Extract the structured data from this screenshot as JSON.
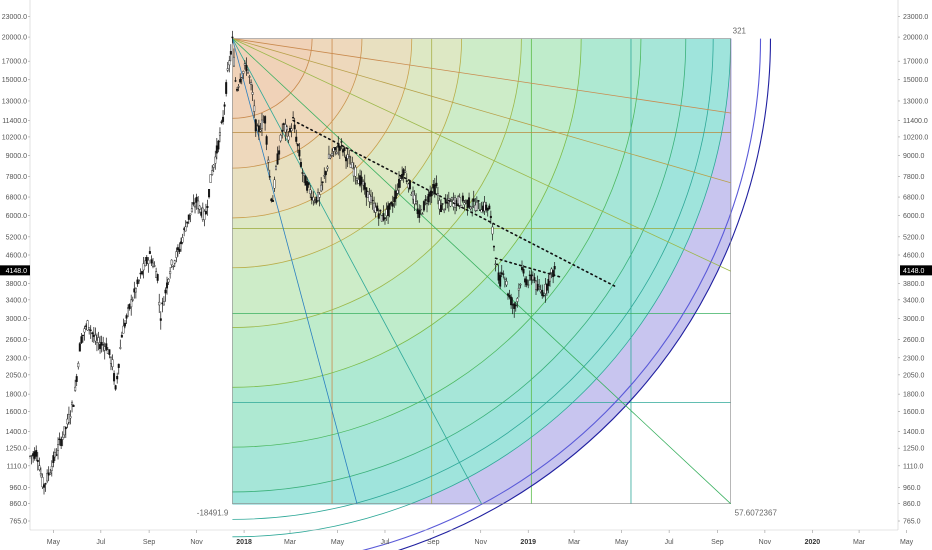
{
  "chart_data": {
    "type": "candlestick",
    "y_scale": "log",
    "ylim": [
      720,
      25000
    ],
    "x_start": "2017-04-01",
    "x_end": "2020-04-20",
    "y_ticks": [
      765.0,
      860.0,
      960.0,
      1110.0,
      1250.0,
      1400.0,
      1600.0,
      1800.0,
      2050.0,
      2300.0,
      2600.0,
      3000.0,
      3400.0,
      3800.0,
      4148.0,
      4600.0,
      5200.0,
      6000.0,
      6800.0,
      7800.0,
      9000.0,
      10200.0,
      11400.0,
      13000.0,
      15000.0,
      17000.0,
      20000.0,
      23000.0
    ],
    "y_tick_labels": [
      "765.0",
      "860.0",
      "960.0",
      "1110.0",
      "1250.0",
      "1400.0",
      "1600.0",
      "1800.0",
      "2050.0",
      "2300.0",
      "2600.0",
      "3000.0",
      "3400.0",
      "3800.0",
      "4148.0",
      "4600.0",
      "5200.0",
      "6000.0",
      "6800.0",
      "7800.0",
      "9000.0",
      "10200.0",
      "11400.0",
      "13000.0",
      "15000.0",
      "17000.0",
      "20000.0",
      "23000.0"
    ],
    "x_ticks": [
      {
        "date": "2017-05-01",
        "label": "May",
        "bold": false
      },
      {
        "date": "2017-07-01",
        "label": "Jul",
        "bold": false
      },
      {
        "date": "2017-09-01",
        "label": "Sep",
        "bold": false
      },
      {
        "date": "2017-11-01",
        "label": "Nov",
        "bold": false
      },
      {
        "date": "2018-01-01",
        "label": "2018",
        "bold": true
      },
      {
        "date": "2018-03-01",
        "label": "Mar",
        "bold": false
      },
      {
        "date": "2018-05-01",
        "label": "May",
        "bold": false
      },
      {
        "date": "2018-07-01",
        "label": "Jul",
        "bold": false
      },
      {
        "date": "2018-09-01",
        "label": "Sep",
        "bold": false
      },
      {
        "date": "2018-11-01",
        "label": "Nov",
        "bold": false
      },
      {
        "date": "2019-01-01",
        "label": "2019",
        "bold": true
      },
      {
        "date": "2019-03-01",
        "label": "Mar",
        "bold": false
      },
      {
        "date": "2019-05-01",
        "label": "May",
        "bold": false
      },
      {
        "date": "2019-07-01",
        "label": "Jul",
        "bold": false
      },
      {
        "date": "2019-09-01",
        "label": "Sep",
        "bold": false
      },
      {
        "date": "2019-11-01",
        "label": "Nov",
        "bold": false
      },
      {
        "date": "2020-01-01",
        "label": "2020",
        "bold": true
      },
      {
        "date": "2020-03-01",
        "label": "Mar",
        "bold": false
      },
      {
        "date": "2020-05-01",
        "label": "May",
        "bold": false
      }
    ],
    "current_price": {
      "value": 4148.0,
      "label": "4148.0"
    },
    "price_path": [
      {
        "date": "2017-04-01",
        "price": 1180
      },
      {
        "date": "2017-04-10",
        "price": 1220
      },
      {
        "date": "2017-04-18",
        "price": 960
      },
      {
        "date": "2017-04-25",
        "price": 1050
      },
      {
        "date": "2017-05-05",
        "price": 1220
      },
      {
        "date": "2017-05-18",
        "price": 1450
      },
      {
        "date": "2017-05-28",
        "price": 1750
      },
      {
        "date": "2017-06-05",
        "price": 2600
      },
      {
        "date": "2017-06-15",
        "price": 2900
      },
      {
        "date": "2017-06-25",
        "price": 2550
      },
      {
        "date": "2017-07-08",
        "price": 2500
      },
      {
        "date": "2017-07-16",
        "price": 2200
      },
      {
        "date": "2017-07-20",
        "price": 1850
      },
      {
        "date": "2017-07-28",
        "price": 2700
      },
      {
        "date": "2017-08-10",
        "price": 3400
      },
      {
        "date": "2017-08-25",
        "price": 4200
      },
      {
        "date": "2017-09-02",
        "price": 4600
      },
      {
        "date": "2017-09-12",
        "price": 4000
      },
      {
        "date": "2017-09-15",
        "price": 3000
      },
      {
        "date": "2017-09-28",
        "price": 4200
      },
      {
        "date": "2017-10-10",
        "price": 4800
      },
      {
        "date": "2017-10-20",
        "price": 5800
      },
      {
        "date": "2017-11-01",
        "price": 6600
      },
      {
        "date": "2017-11-12",
        "price": 5900
      },
      {
        "date": "2017-11-20",
        "price": 7900
      },
      {
        "date": "2017-11-28",
        "price": 9500
      },
      {
        "date": "2017-12-05",
        "price": 11500
      },
      {
        "date": "2017-12-10",
        "price": 15000
      },
      {
        "date": "2017-12-17",
        "price": 19500
      },
      {
        "date": "2017-12-22",
        "price": 14000
      },
      {
        "date": "2017-12-28",
        "price": 15500
      },
      {
        "date": "2018-01-05",
        "price": 16500
      },
      {
        "date": "2018-01-12",
        "price": 13500
      },
      {
        "date": "2018-01-17",
        "price": 10500
      },
      {
        "date": "2018-01-28",
        "price": 11500
      },
      {
        "date": "2018-02-06",
        "price": 6400
      },
      {
        "date": "2018-02-12",
        "price": 8500
      },
      {
        "date": "2018-02-20",
        "price": 11000
      },
      {
        "date": "2018-02-28",
        "price": 10300
      },
      {
        "date": "2018-03-05",
        "price": 11400
      },
      {
        "date": "2018-03-18",
        "price": 7800
      },
      {
        "date": "2018-04-01",
        "price": 6700
      },
      {
        "date": "2018-04-08",
        "price": 6800
      },
      {
        "date": "2018-04-20",
        "price": 8800
      },
      {
        "date": "2018-05-05",
        "price": 9700
      },
      {
        "date": "2018-05-20",
        "price": 8300
      },
      {
        "date": "2018-06-01",
        "price": 7500
      },
      {
        "date": "2018-06-15",
        "price": 6500
      },
      {
        "date": "2018-06-28",
        "price": 5900
      },
      {
        "date": "2018-07-10",
        "price": 6400
      },
      {
        "date": "2018-07-25",
        "price": 8200
      },
      {
        "date": "2018-08-05",
        "price": 7000
      },
      {
        "date": "2018-08-14",
        "price": 6000
      },
      {
        "date": "2018-08-28",
        "price": 7000
      },
      {
        "date": "2018-09-05",
        "price": 7300
      },
      {
        "date": "2018-09-10",
        "price": 6300
      },
      {
        "date": "2018-09-25",
        "price": 6600
      },
      {
        "date": "2018-10-10",
        "price": 6600
      },
      {
        "date": "2018-10-25",
        "price": 6450
      },
      {
        "date": "2018-11-12",
        "price": 6300
      },
      {
        "date": "2018-11-15",
        "price": 5600
      },
      {
        "date": "2018-11-20",
        "price": 4500
      },
      {
        "date": "2018-11-25",
        "price": 3800
      },
      {
        "date": "2018-11-30",
        "price": 4200
      },
      {
        "date": "2018-12-07",
        "price": 3500
      },
      {
        "date": "2018-12-15",
        "price": 3200
      },
      {
        "date": "2018-12-24",
        "price": 4100
      },
      {
        "date": "2019-01-01",
        "price": 3800
      },
      {
        "date": "2019-01-08",
        "price": 4050
      },
      {
        "date": "2019-01-12",
        "price": 3650
      },
      {
        "date": "2019-01-22",
        "price": 3600
      },
      {
        "date": "2019-01-29",
        "price": 4000
      },
      {
        "date": "2019-02-04",
        "price": 4150
      }
    ],
    "gann_fan": {
      "origin": {
        "date": "2017-12-17",
        "price": 19800
      },
      "bottom_price": 860,
      "end_date": "2019-09-18",
      "top_right_label": "321",
      "bottom_left_label": "-18491.9",
      "bottom_right_label": "57.6072367",
      "grid_x_fractions": [
        0.2,
        0.4,
        0.6,
        0.8
      ],
      "grid_y_prices": [
        10500,
        5500,
        3100,
        1700
      ]
    },
    "trend_lines": [
      {
        "name": "dotted",
        "from": {
          "date": "2018-03-05",
          "price": 11400
        },
        "to": {
          "date": "2019-04-25",
          "price": 3700
        }
      },
      {
        "name": "short",
        "from": {
          "date": "2018-11-20",
          "price": 4500
        },
        "to": {
          "date": "2019-02-14",
          "price": 3950
        }
      }
    ],
    "colors": {
      "bar": "#111111",
      "price_label_bg": "#000000",
      "outer_ring": "#8a8ae0",
      "inner_fill": "#9fe6d8",
      "warm_fill": "#f2c9a8"
    }
  }
}
